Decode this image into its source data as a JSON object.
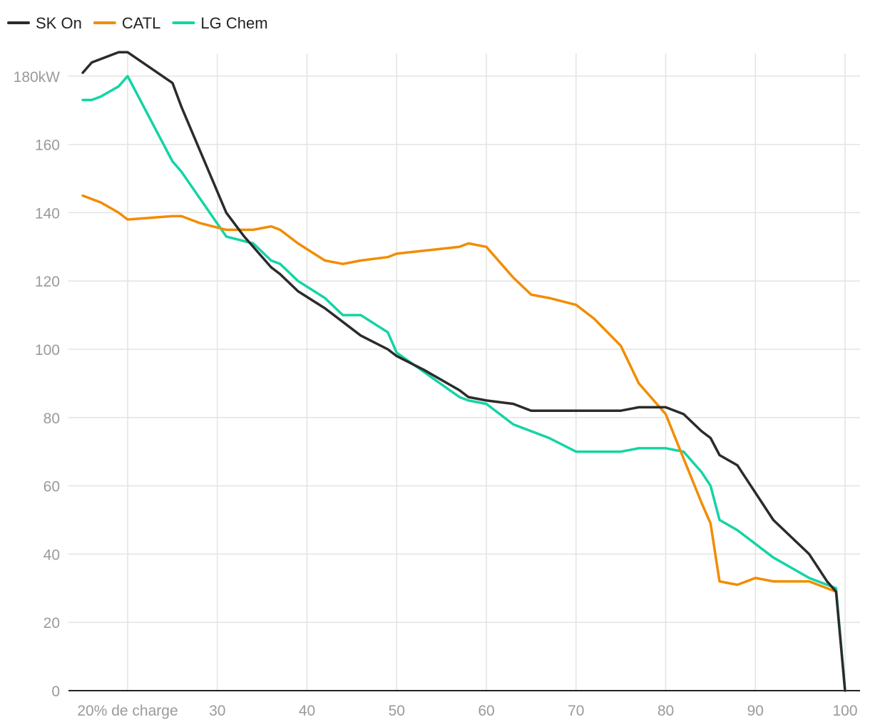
{
  "chart_data": {
    "type": "line",
    "title": "",
    "xlabel": "",
    "ylabel": "",
    "xlim": [
      15.5,
      101.5
    ],
    "ylim": [
      0,
      187
    ],
    "x_ticks": [
      {
        "value": 20,
        "label": "20% de charge"
      },
      {
        "value": 30,
        "label": "30"
      },
      {
        "value": 40,
        "label": "40"
      },
      {
        "value": 50,
        "label": "50"
      },
      {
        "value": 60,
        "label": "60"
      },
      {
        "value": 70,
        "label": "70"
      },
      {
        "value": 80,
        "label": "80"
      },
      {
        "value": 90,
        "label": "90"
      },
      {
        "value": 100,
        "label": "100"
      }
    ],
    "y_ticks": [
      {
        "value": 0,
        "label": "0"
      },
      {
        "value": 20,
        "label": "20"
      },
      {
        "value": 40,
        "label": "40"
      },
      {
        "value": 60,
        "label": "60"
      },
      {
        "value": 80,
        "label": "80"
      },
      {
        "value": 100,
        "label": "100"
      },
      {
        "value": 120,
        "label": "120"
      },
      {
        "value": 140,
        "label": "140"
      },
      {
        "value": 160,
        "label": "160"
      },
      {
        "value": 180,
        "label": "180kW"
      }
    ],
    "grid": true,
    "legend_position": "top-left",
    "series": [
      {
        "name": "SK On",
        "color": "#2b2b2b",
        "points": [
          [
            15,
            181
          ],
          [
            16,
            184
          ],
          [
            19,
            187
          ],
          [
            20,
            187
          ],
          [
            25,
            178
          ],
          [
            26,
            171
          ],
          [
            31,
            140
          ],
          [
            33,
            133
          ],
          [
            36,
            124
          ],
          [
            37,
            122
          ],
          [
            39,
            117
          ],
          [
            42,
            112
          ],
          [
            46,
            104
          ],
          [
            49,
            100
          ],
          [
            50,
            98
          ],
          [
            53,
            94
          ],
          [
            57,
            88
          ],
          [
            58,
            86
          ],
          [
            60,
            85
          ],
          [
            63,
            84
          ],
          [
            65,
            82
          ],
          [
            75,
            82
          ],
          [
            77,
            83
          ],
          [
            80,
            83
          ],
          [
            82,
            81
          ],
          [
            84,
            76
          ],
          [
            85,
            74
          ],
          [
            86,
            69
          ],
          [
            88,
            66
          ],
          [
            92,
            50
          ],
          [
            96,
            40
          ],
          [
            98,
            32
          ],
          [
            99,
            29
          ],
          [
            100,
            0
          ]
        ]
      },
      {
        "name": "CATL",
        "color": "#f28c00",
        "points": [
          [
            15,
            145
          ],
          [
            17,
            143
          ],
          [
            19,
            140
          ],
          [
            20,
            138
          ],
          [
            25,
            139
          ],
          [
            26,
            139
          ],
          [
            28,
            137
          ],
          [
            31,
            135
          ],
          [
            33,
            135
          ],
          [
            34,
            135
          ],
          [
            36,
            136
          ],
          [
            37,
            135
          ],
          [
            39,
            131
          ],
          [
            42,
            126
          ],
          [
            44,
            125
          ],
          [
            46,
            126
          ],
          [
            49,
            127
          ],
          [
            50,
            128
          ],
          [
            57,
            130
          ],
          [
            58,
            131
          ],
          [
            60,
            130
          ],
          [
            63,
            121
          ],
          [
            65,
            116
          ],
          [
            67,
            115
          ],
          [
            70,
            113
          ],
          [
            72,
            109
          ],
          [
            75,
            101
          ],
          [
            77,
            90
          ],
          [
            80,
            81
          ],
          [
            82,
            68
          ],
          [
            84,
            55
          ],
          [
            85,
            49
          ],
          [
            86,
            32
          ],
          [
            88,
            31
          ],
          [
            90,
            33
          ],
          [
            92,
            32
          ],
          [
            96,
            32
          ],
          [
            99,
            29
          ]
        ]
      },
      {
        "name": "LG Chem",
        "color": "#14d4a4",
        "points": [
          [
            15,
            173
          ],
          [
            16,
            173
          ],
          [
            17,
            174
          ],
          [
            19,
            177
          ],
          [
            20,
            180
          ],
          [
            25,
            155
          ],
          [
            26,
            152
          ],
          [
            31,
            133
          ],
          [
            34,
            131
          ],
          [
            36,
            126
          ],
          [
            37,
            125
          ],
          [
            39,
            120
          ],
          [
            42,
            115
          ],
          [
            44,
            110
          ],
          [
            46,
            110
          ],
          [
            49,
            105
          ],
          [
            50,
            99
          ],
          [
            57,
            86
          ],
          [
            58,
            85
          ],
          [
            60,
            84
          ],
          [
            63,
            78
          ],
          [
            67,
            74
          ],
          [
            70,
            70
          ],
          [
            75,
            70
          ],
          [
            77,
            71
          ],
          [
            80,
            71
          ],
          [
            82,
            70
          ],
          [
            84,
            64
          ],
          [
            85,
            60
          ],
          [
            86,
            50
          ],
          [
            88,
            47
          ],
          [
            92,
            39
          ],
          [
            96,
            33
          ],
          [
            99,
            30
          ],
          [
            100,
            0
          ]
        ]
      }
    ]
  }
}
